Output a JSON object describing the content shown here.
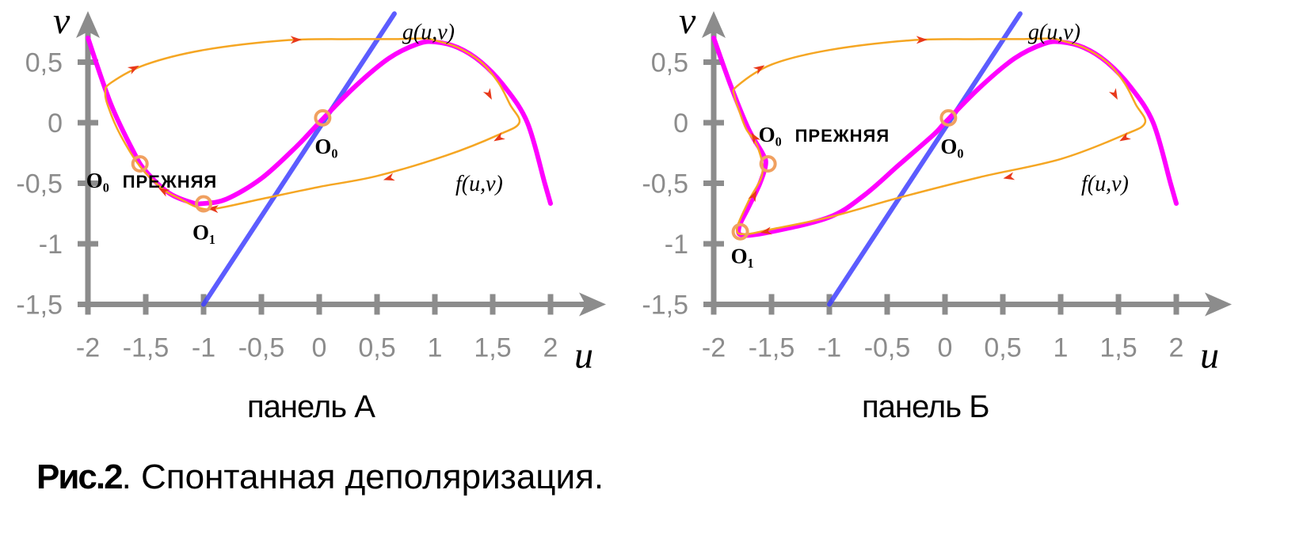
{
  "figure": {
    "number": "Рис.2",
    "title": ". Спонтанная деполяризация."
  },
  "colors": {
    "axis": "#8c8c8c",
    "nullcline_f": "#ff00ff",
    "nullcline_g": "#4040ff",
    "trajectory": "#f5a623",
    "direction_arrow": "#e8381a",
    "equilibrium_marker": "#f0a060"
  },
  "chart_data": [
    {
      "type": "line",
      "caption": "панель А",
      "xlabel": "u",
      "ylabel": "v",
      "xlim": [
        -2,
        2.3
      ],
      "ylim": [
        -1.5,
        0.8
      ],
      "xticks": [
        -2,
        -1.5,
        -1,
        -0.5,
        0,
        0.5,
        1,
        1.5,
        2
      ],
      "xtick_labels": [
        "-2",
        "-1,5",
        "-1",
        "-0,5",
        "0",
        "0,5",
        "1",
        "1,5",
        "2"
      ],
      "yticks": [
        0.5,
        0,
        -0.5,
        -1,
        -1.5
      ],
      "ytick_labels": [
        "0,5",
        "0",
        "-0,5",
        "-1",
        "-1,5"
      ],
      "grid": false,
      "curve_labels": {
        "f": "f(u,v)",
        "g": "g(u,v)"
      },
      "series": [
        {
          "name": "f(u,v)",
          "points": [
            [
              -2,
              0.7
            ],
            [
              -1.8,
              0.15
            ],
            [
              -1.6,
              -0.25
            ],
            [
              -1.5,
              -0.4
            ],
            [
              -1.3,
              -0.58
            ],
            [
              -1.1,
              -0.66
            ],
            [
              -1,
              -0.667
            ],
            [
              -0.8,
              -0.63
            ],
            [
              -0.5,
              -0.46
            ],
            [
              -0.2,
              -0.2
            ],
            [
              0,
              0
            ],
            [
              0.3,
              0.29
            ],
            [
              0.6,
              0.53
            ],
            [
              0.85,
              0.65
            ],
            [
              1,
              0.667
            ],
            [
              1.2,
              0.62
            ],
            [
              1.4,
              0.5
            ],
            [
              1.6,
              0.3
            ],
            [
              1.8,
              0.0
            ],
            [
              1.95,
              -0.5
            ],
            [
              2,
              -0.667
            ]
          ]
        },
        {
          "name": "g(u,v)",
          "points": [
            [
              -1,
              -1.5
            ],
            [
              0.65,
              0.9
            ]
          ]
        },
        {
          "name": "trajectory",
          "points": [
            [
              0.65,
              0.69
            ],
            [
              0.9,
              0.695
            ],
            [
              1.0,
              0.68
            ],
            [
              1.2,
              0.62
            ],
            [
              1.4,
              0.5
            ],
            [
              1.55,
              0.33
            ],
            [
              1.65,
              0.15
            ],
            [
              1.73,
              0.0
            ],
            [
              1.55,
              -0.1
            ],
            [
              1.1,
              -0.27
            ],
            [
              0.5,
              -0.44
            ],
            [
              0,
              -0.53
            ],
            [
              -0.5,
              -0.63
            ],
            [
              -0.9,
              -0.71
            ],
            [
              -1.05,
              -0.7
            ],
            [
              -1.2,
              -0.63
            ],
            [
              -1.35,
              -0.55
            ],
            [
              -1.55,
              -0.36
            ],
            [
              -1.72,
              -0.1
            ],
            [
              -1.82,
              0.12
            ],
            [
              -1.85,
              0.25
            ],
            [
              -1.8,
              0.33
            ],
            [
              -1.5,
              0.48
            ],
            [
              -1.0,
              0.6
            ],
            [
              -0.3,
              0.68
            ],
            [
              0.3,
              0.69
            ],
            [
              0.65,
              0.69
            ]
          ],
          "arrows": [
            [
              -0.2,
              0.685
            ],
            [
              -1.6,
              0.45
            ],
            [
              0.6,
              -0.46
            ],
            [
              1.55,
              -0.13
            ],
            [
              1.47,
              0.23
            ],
            [
              -1.35,
              -0.56
            ],
            [
              -0.92,
              -0.71
            ]
          ]
        }
      ],
      "equilibria": [
        {
          "label": "O₀",
          "note": "ПРЕЖНЯЯ",
          "u": -1.55,
          "v": -0.34
        },
        {
          "label": "O₀",
          "note": "",
          "u": 0.03,
          "v": 0.04
        },
        {
          "label": "O₁",
          "note": "",
          "u": -1.0,
          "v": -0.67
        }
      ]
    },
    {
      "type": "line",
      "caption": "панель Б",
      "xlabel": "u",
      "ylabel": "v",
      "xlim": [
        -2,
        2.3
      ],
      "ylim": [
        -1.5,
        0.8
      ],
      "xticks": [
        -2,
        -1.5,
        -1,
        -0.5,
        0,
        0.5,
        1,
        1.5,
        2
      ],
      "xtick_labels": [
        "-2",
        "-1,5",
        "-1",
        "-0,5",
        "0",
        "0,5",
        "1",
        "1,5",
        "2"
      ],
      "yticks": [
        0.5,
        0,
        -0.5,
        -1,
        -1.5
      ],
      "ytick_labels": [
        "0,5",
        "0",
        "-0,5",
        "-1",
        "-1,5"
      ],
      "grid": false,
      "curve_labels": {
        "f": "f(u,v)",
        "g": "g(u,v)"
      },
      "series": [
        {
          "name": "f(u,v)",
          "points": [
            [
              -2,
              0.7
            ],
            [
              -1.85,
              0.3
            ],
            [
              -1.7,
              -0.05
            ],
            [
              -1.58,
              -0.25
            ],
            [
              -1.55,
              -0.34
            ],
            [
              -1.6,
              -0.5
            ],
            [
              -1.7,
              -0.7
            ],
            [
              -1.78,
              -0.86
            ],
            [
              -1.75,
              -0.93
            ],
            [
              -1.5,
              -0.9
            ],
            [
              -1.0,
              -0.78
            ],
            [
              -0.7,
              -0.6
            ],
            [
              -0.4,
              -0.35
            ],
            [
              -0.1,
              -0.1
            ],
            [
              0,
              0
            ],
            [
              0.3,
              0.29
            ],
            [
              0.6,
              0.53
            ],
            [
              0.85,
              0.65
            ],
            [
              1,
              0.667
            ],
            [
              1.2,
              0.62
            ],
            [
              1.4,
              0.5
            ],
            [
              1.6,
              0.3
            ],
            [
              1.8,
              0.0
            ],
            [
              1.95,
              -0.5
            ],
            [
              2,
              -0.667
            ]
          ]
        },
        {
          "name": "g(u,v)",
          "points": [
            [
              -1,
              -1.5
            ],
            [
              0.65,
              0.9
            ]
          ]
        },
        {
          "name": "trajectory",
          "points": [
            [
              0.65,
              0.69
            ],
            [
              0.9,
              0.695
            ],
            [
              1.0,
              0.68
            ],
            [
              1.2,
              0.62
            ],
            [
              1.4,
              0.5
            ],
            [
              1.55,
              0.33
            ],
            [
              1.65,
              0.15
            ],
            [
              1.73,
              0.0
            ],
            [
              1.55,
              -0.1
            ],
            [
              1.0,
              -0.3
            ],
            [
              0.3,
              -0.45
            ],
            [
              -0.4,
              -0.62
            ],
            [
              -1.0,
              -0.78
            ],
            [
              -1.5,
              -0.88
            ],
            [
              -1.72,
              -0.92
            ],
            [
              -1.8,
              -0.88
            ],
            [
              -1.7,
              -0.65
            ],
            [
              -1.58,
              -0.42
            ],
            [
              -1.62,
              -0.2
            ],
            [
              -1.72,
              -0.05
            ],
            [
              -1.78,
              0.1
            ],
            [
              -1.82,
              0.22
            ],
            [
              -1.8,
              0.3
            ],
            [
              -1.5,
              0.48
            ],
            [
              -1.0,
              0.6
            ],
            [
              -0.3,
              0.68
            ],
            [
              0.3,
              0.69
            ],
            [
              0.65,
              0.69
            ]
          ],
          "arrows": [
            [
              -0.2,
              0.685
            ],
            [
              -1.6,
              0.45
            ],
            [
              0.55,
              -0.45
            ],
            [
              1.55,
              -0.13
            ],
            [
              1.47,
              0.23
            ],
            [
              -1.65,
              -0.6
            ],
            [
              -1.65,
              -0.12
            ],
            [
              -1.55,
              -0.9
            ]
          ]
        }
      ],
      "equilibria": [
        {
          "label": "O₀",
          "note": "ПРЕЖНЯЯ",
          "u": -1.53,
          "v": -0.34
        },
        {
          "label": "O₀",
          "note": "",
          "u": 0.03,
          "v": 0.04
        },
        {
          "label": "O₁",
          "note": "",
          "u": -1.77,
          "v": -0.9
        }
      ]
    }
  ]
}
